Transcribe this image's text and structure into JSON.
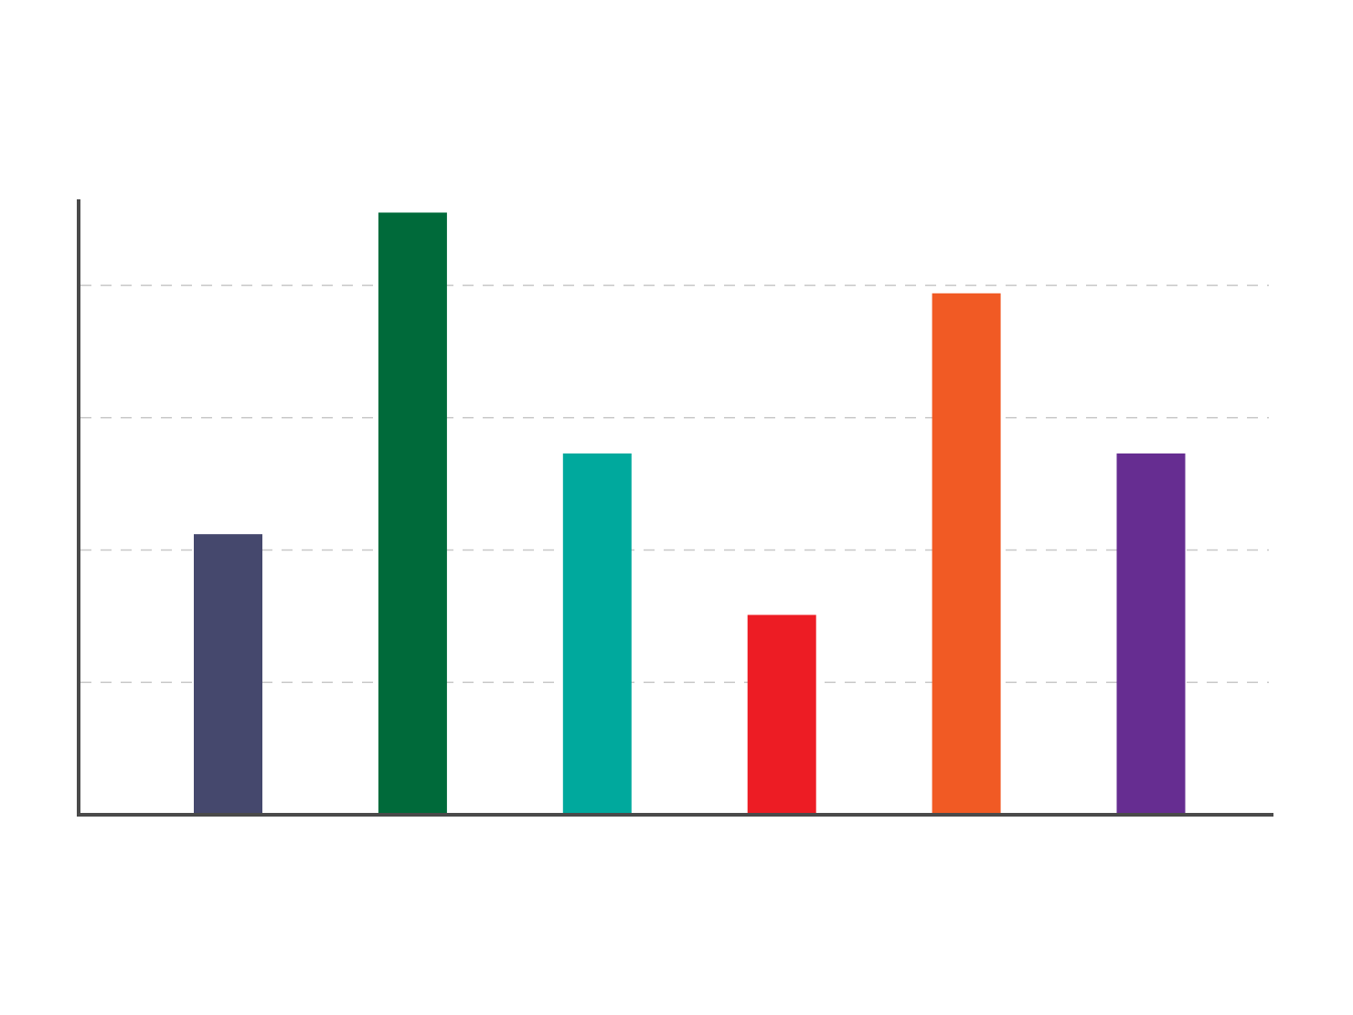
{
  "chart_data": {
    "type": "bar",
    "ylim": [
      0,
      4.65
    ],
    "grid": true,
    "gridlines": [
      1,
      2,
      3,
      4
    ],
    "values": [
      2.12,
      4.55,
      2.73,
      1.51,
      3.94,
      2.73
    ],
    "colors": [
      "#45486d",
      "#006a3a",
      "#00a99d",
      "#ed1c24",
      "#f15a24",
      "#662d91"
    ],
    "axis_color": "#4a4a4a",
    "grid_color": "#c8c8c8"
  }
}
